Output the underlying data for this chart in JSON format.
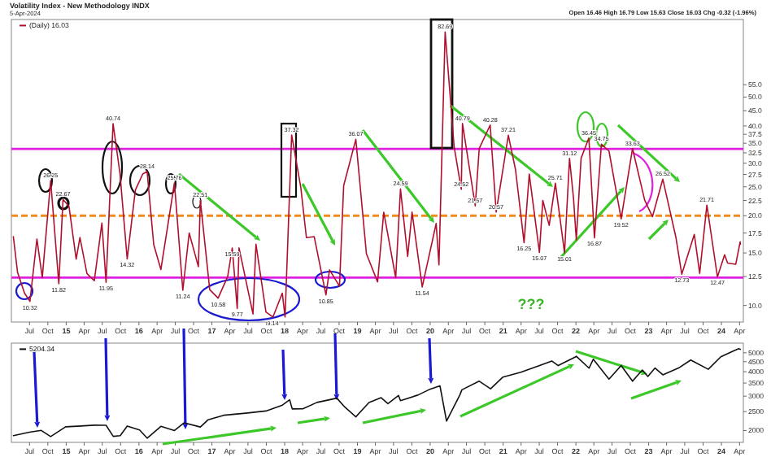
{
  "chart_data": [
    {
      "type": "line",
      "title": "Volatility Index - New Methodology INDX",
      "subtitle": "5-Apr-2024",
      "log": true,
      "legend": "top left",
      "xlim": [
        "2014-04-01",
        "2024-04-20"
      ],
      "xticks": [
        {
          "value": "2014-07-01",
          "label": "Jul"
        },
        {
          "value": "2014-10-01",
          "label": "Oct"
        },
        {
          "value": "2015-01-01",
          "label": "15"
        },
        {
          "value": "2015-04-01",
          "label": "Apr"
        },
        {
          "value": "2015-07-01",
          "label": "Jul"
        },
        {
          "value": "2015-10-01",
          "label": "Oct"
        },
        {
          "value": "2016-01-01",
          "label": "16"
        },
        {
          "value": "2016-04-01",
          "label": "Apr"
        },
        {
          "value": "2016-07-01",
          "label": "Jul"
        },
        {
          "value": "2016-10-01",
          "label": "Oct"
        },
        {
          "value": "2017-01-01",
          "label": "17"
        },
        {
          "value": "2017-04-01",
          "label": "Apr"
        },
        {
          "value": "2017-07-01",
          "label": "Jul"
        },
        {
          "value": "2017-10-01",
          "label": "Oct"
        },
        {
          "value": "2018-01-01",
          "label": "18"
        },
        {
          "value": "2018-04-01",
          "label": "Apr"
        },
        {
          "value": "2018-07-01",
          "label": "Jul"
        },
        {
          "value": "2018-10-01",
          "label": "Oct"
        },
        {
          "value": "2019-01-01",
          "label": "19"
        },
        {
          "value": "2019-04-01",
          "label": "Apr"
        },
        {
          "value": "2019-07-01",
          "label": "Jul"
        },
        {
          "value": "2019-10-01",
          "label": "Oct"
        },
        {
          "value": "2020-01-01",
          "label": "20"
        },
        {
          "value": "2020-04-01",
          "label": "Apr"
        },
        {
          "value": "2020-07-01",
          "label": "Jul"
        },
        {
          "value": "2020-10-01",
          "label": "Oct"
        },
        {
          "value": "2021-01-01",
          "label": "21"
        },
        {
          "value": "2021-04-01",
          "label": "Apr"
        },
        {
          "value": "2021-07-01",
          "label": "Jul"
        },
        {
          "value": "2021-10-01",
          "label": "Oct"
        },
        {
          "value": "2022-01-01",
          "label": "22"
        },
        {
          "value": "2022-04-01",
          "label": "Apr"
        },
        {
          "value": "2022-07-01",
          "label": "Jul"
        },
        {
          "value": "2022-10-01",
          "label": "Oct"
        },
        {
          "value": "2023-01-01",
          "label": "23"
        },
        {
          "value": "2023-04-01",
          "label": "Apr"
        },
        {
          "value": "2023-07-01",
          "label": "Jul"
        },
        {
          "value": "2023-10-01",
          "label": "Oct"
        },
        {
          "value": "2024-01-01",
          "label": "24"
        },
        {
          "value": "2024-04-01",
          "label": "Apr"
        }
      ],
      "ylim": [
        8.8,
        91
      ],
      "yticks": [
        {
          "value": 10,
          "label": "10.0"
        },
        12.5,
        {
          "value": 15,
          "label": "15.0"
        },
        17.5,
        {
          "value": 20,
          "label": "20.0"
        },
        22.5,
        {
          "value": 25,
          "label": "25.0"
        },
        27.5,
        {
          "value": 30,
          "label": "30.0"
        },
        32.5,
        {
          "value": 35,
          "label": "35.0"
        },
        37.5,
        {
          "value": 40,
          "label": "40.0"
        },
        {
          "value": 45,
          "label": "45.0"
        },
        {
          "value": 50,
          "label": "50.0"
        },
        {
          "value": 55,
          "label": "55.0"
        }
      ],
      "x": [
        "2014-04-11",
        "2014-05-02",
        "2014-06-06",
        "2014-07-03",
        "2014-08-07",
        "2014-09-03",
        "2014-10-15",
        "2014-11-25",
        "2014-12-16",
        "2015-01-15",
        "2015-02-20",
        "2015-03-11",
        "2015-04-15",
        "2015-05-22",
        "2015-06-29",
        "2015-07-20",
        "2015-08-24",
        "2015-09-28",
        "2015-11-03",
        "2015-12-14",
        "2016-01-20",
        "2016-02-11",
        "2016-03-15",
        "2016-04-20",
        "2016-06-27",
        "2016-08-08",
        "2016-09-09",
        "2016-10-25",
        "2016-11-04",
        "2016-12-21",
        "2017-02-01",
        "2017-03-21",
        "2017-04-13",
        "2017-05-08",
        "2017-05-17",
        "2017-07-26",
        "2017-08-10",
        "2017-09-29",
        "2017-11-03",
        "2017-12-20",
        "2018-01-03",
        "2018-02-05",
        "2018-03-23",
        "2018-04-20",
        "2018-05-29",
        "2018-07-27",
        "2018-08-14",
        "2018-10-03",
        "2018-10-24",
        "2018-12-24",
        "2019-02-15",
        "2019-04-12",
        "2019-05-13",
        "2019-07-12",
        "2019-08-05",
        "2019-09-10",
        "2019-10-02",
        "2019-11-22",
        "2020-01-31",
        "2020-02-14",
        "2020-03-16",
        "2020-04-30",
        "2020-06-05",
        "2020-06-11",
        "2020-08-14",
        "2020-09-03",
        "2020-10-28",
        "2020-11-27",
        "2021-01-27",
        "2021-03-04",
        "2021-04-16",
        "2021-05-12",
        "2021-07-02",
        "2021-07-19",
        "2021-08-20",
        "2021-09-20",
        "2021-11-05",
        "2021-11-30",
        "2021-12-20",
        "2022-01-03",
        "2022-01-27",
        "2022-03-07",
        "2022-04-04",
        "2022-05-09",
        "2022-06-16",
        "2022-08-16",
        "2022-10-12",
        "2022-12-12",
        "2023-01-20",
        "2023-03-13",
        "2023-05-18",
        "2023-06-16",
        "2023-08-18",
        "2023-09-14",
        "2023-10-20",
        "2023-12-12",
        "2024-01-17",
        "2024-02-01",
        "2024-03-13",
        "2024-04-04",
        "2024-04-05"
      ],
      "series": [
        {
          "name": "(Daily) 16.03",
          "color": "#b0102e",
          "values": [
            17.0,
            12.9,
            11.0,
            10.32,
            16.7,
            12.4,
            26.25,
            11.82,
            22.67,
            21.5,
            14.3,
            16.9,
            12.8,
            12.1,
            18.9,
            11.95,
            40.74,
            27.6,
            14.32,
            24.4,
            27.6,
            28.14,
            16.0,
            13.2,
            25.76,
            11.24,
            17.5,
            13.5,
            22.51,
            11.3,
            10.58,
            12.5,
            15.59,
            9.77,
            15.6,
            9.36,
            16.04,
            9.51,
            9.14,
            11.0,
            9.15,
            37.32,
            24.87,
            16.88,
            17.02,
            10.85,
            13.16,
            11.61,
            25.23,
            36.07,
            14.91,
            12.0,
            20.55,
            12.39,
            24.59,
            14.6,
            20.56,
            11.54,
            18.84,
            13.68,
            82.69,
            34.15,
            24.52,
            40.79,
            21.57,
            33.6,
            40.28,
            20.57,
            37.21,
            28.57,
            16.25,
            27.59,
            15.07,
            22.5,
            18.56,
            25.71,
            15.01,
            31.12,
            22.87,
            16.6,
            31.16,
            36.45,
            16.87,
            34.75,
            32.95,
            19.52,
            33.63,
            22.55,
            19.85,
            26.52,
            16.88,
            12.73,
            17.3,
            12.82,
            21.71,
            12.47,
            14.79,
            13.88,
            13.75,
            16.35,
            16.03
          ]
        }
      ],
      "ref_lines": [
        {
          "axis": "y",
          "value": 33.5,
          "color": "#e020e0",
          "line_style": "solid"
        },
        {
          "axis": "y",
          "value": 20,
          "color": "#f08c1e",
          "line_style": "dashed"
        },
        {
          "axis": "y",
          "value": 12.4,
          "color": "#e020e0",
          "line_style": "solid"
        }
      ],
      "annotations": [
        "Open 16.46 High 16.79 Low 15.63 Close 16.03 Chg -0.32 (-1.96%)",
        "???",
        {
          "text": "10.32",
          "x": "2014-07-03",
          "y": 10.32
        },
        {
          "text": "26.25",
          "x": "2014-10-15",
          "y": 26.25
        },
        {
          "text": "11.82",
          "x": "2014-11-25",
          "y": 11.82
        },
        {
          "text": "22.67",
          "x": "2014-12-16",
          "y": 22.67
        },
        {
          "text": "11.95",
          "x": "2015-07-20",
          "y": 11.95
        },
        {
          "text": "40.74",
          "x": "2015-08-24",
          "y": 40.74
        },
        {
          "text": "14.32",
          "x": "2015-11-03",
          "y": 14.32
        },
        {
          "text": "28.14",
          "x": "2016-02-11",
          "y": 28.14
        },
        {
          "text": "25.76",
          "x": "2016-06-27",
          "y": 25.76
        },
        {
          "text": "11.24",
          "x": "2016-08-08",
          "y": 11.24
        },
        {
          "text": "22.51",
          "x": "2016-11-04",
          "y": 22.51
        },
        {
          "text": "10.58",
          "x": "2017-02-01",
          "y": 10.58
        },
        {
          "text": "15.59",
          "x": "2017-04-13",
          "y": 15.59
        },
        {
          "text": "9.77",
          "x": "2017-05-08",
          "y": 9.77
        },
        {
          "text": "9.14",
          "x": "2017-11-03",
          "y": 9.14
        },
        {
          "text": "37.32",
          "x": "2018-02-05",
          "y": 37.32
        },
        {
          "text": "10.85",
          "x": "2018-07-27",
          "y": 10.85
        },
        {
          "text": "36.07",
          "x": "2018-12-24",
          "y": 36.07
        },
        {
          "text": "24.59",
          "x": "2019-08-05",
          "y": 24.59
        },
        {
          "text": "11.54",
          "x": "2019-11-22",
          "y": 11.54
        },
        {
          "text": "82.69",
          "x": "2020-03-16",
          "y": 82.69
        },
        {
          "text": "24.52",
          "x": "2020-06-05",
          "y": 24.52
        },
        {
          "text": "40.79",
          "x": "2020-06-11",
          "y": 40.79
        },
        {
          "text": "21.57",
          "x": "2020-08-14",
          "y": 21.57
        },
        {
          "text": "40.28",
          "x": "2020-10-28",
          "y": 40.28
        },
        {
          "text": "20.57",
          "x": "2020-11-27",
          "y": 20.57
        },
        {
          "text": "37.21",
          "x": "2021-01-27",
          "y": 37.21
        },
        {
          "text": "16.25",
          "x": "2021-04-16",
          "y": 16.25
        },
        {
          "text": "15.07",
          "x": "2021-07-02",
          "y": 15.07
        },
        {
          "text": "25.71",
          "x": "2021-09-20",
          "y": 25.71
        },
        {
          "text": "15.01",
          "x": "2021-11-05",
          "y": 15.01
        },
        {
          "text": "31.12",
          "x": "2021-11-30",
          "y": 31.12
        },
        {
          "text": "36.45",
          "x": "2022-03-07",
          "y": 36.45
        },
        {
          "text": "16.87",
          "x": "2022-04-04",
          "y": 16.87
        },
        {
          "text": "34.75",
          "x": "2022-05-09",
          "y": 34.75
        },
        {
          "text": "19.52",
          "x": "2022-08-16",
          "y": 19.52
        },
        {
          "text": "33.63",
          "x": "2022-10-12",
          "y": 33.63
        },
        {
          "text": "26.52",
          "x": "2023-03-13",
          "y": 26.52
        },
        {
          "text": "12.73",
          "x": "2023-06-16",
          "y": 12.73
        },
        {
          "text": "21.71",
          "x": "2023-10-20",
          "y": 21.71
        },
        {
          "text": "12.47",
          "x": "2023-12-12",
          "y": 12.47
        }
      ]
    },
    {
      "type": "line",
      "log": true,
      "legend": "top left",
      "xlim": [
        "2014-04-01",
        "2024-04-20"
      ],
      "xticks": [
        {
          "value": "2014-07-01",
          "label": "Jul"
        },
        {
          "value": "2014-10-01",
          "label": "Oct"
        },
        {
          "value": "2015-01-01",
          "label": "15"
        },
        {
          "value": "2015-04-01",
          "label": "Apr"
        },
        {
          "value": "2015-07-01",
          "label": "Jul"
        },
        {
          "value": "2015-10-01",
          "label": "Oct"
        },
        {
          "value": "2016-01-01",
          "label": "16"
        },
        {
          "value": "2016-04-01",
          "label": "Apr"
        },
        {
          "value": "2016-07-01",
          "label": "Jul"
        },
        {
          "value": "2016-10-01",
          "label": "Oct"
        },
        {
          "value": "2017-01-01",
          "label": "17"
        },
        {
          "value": "2017-04-01",
          "label": "Apr"
        },
        {
          "value": "2017-07-01",
          "label": "Jul"
        },
        {
          "value": "2017-10-01",
          "label": "Oct"
        },
        {
          "value": "2018-01-01",
          "label": "18"
        },
        {
          "value": "2018-04-01",
          "label": "Apr"
        },
        {
          "value": "2018-07-01",
          "label": "Jul"
        },
        {
          "value": "2018-10-01",
          "label": "Oct"
        },
        {
          "value": "2019-01-01",
          "label": "19"
        },
        {
          "value": "2019-04-01",
          "label": "Apr"
        },
        {
          "value": "2019-07-01",
          "label": "Jul"
        },
        {
          "value": "2019-10-01",
          "label": "Oct"
        },
        {
          "value": "2020-01-01",
          "label": "20"
        },
        {
          "value": "2020-04-01",
          "label": "Apr"
        },
        {
          "value": "2020-07-01",
          "label": "Jul"
        },
        {
          "value": "2020-10-01",
          "label": "Oct"
        },
        {
          "value": "2021-01-01",
          "label": "21"
        },
        {
          "value": "2021-04-01",
          "label": "Apr"
        },
        {
          "value": "2021-07-01",
          "label": "Jul"
        },
        {
          "value": "2021-10-01",
          "label": "Oct"
        },
        {
          "value": "2022-01-01",
          "label": "22"
        },
        {
          "value": "2022-04-01",
          "label": "Apr"
        },
        {
          "value": "2022-07-01",
          "label": "Jul"
        },
        {
          "value": "2022-10-01",
          "label": "Oct"
        },
        {
          "value": "2023-01-01",
          "label": "23"
        },
        {
          "value": "2023-04-01",
          "label": "Apr"
        },
        {
          "value": "2023-07-01",
          "label": "Jul"
        },
        {
          "value": "2023-10-01",
          "label": "Oct"
        },
        {
          "value": "2024-01-01",
          "label": "24"
        },
        {
          "value": "2024-04-01",
          "label": "Apr"
        }
      ],
      "ylim": [
        1740,
        5600
      ],
      "yticks": [
        2000,
        2500,
        3000,
        3500,
        4000,
        4500,
        5000
      ],
      "x": [
        "2014-04-11",
        "2014-06-30",
        "2014-08-29",
        "2014-10-15",
        "2014-12-29",
        "2015-02-27",
        "2015-05-21",
        "2015-07-20",
        "2015-08-25",
        "2015-09-29",
        "2015-11-03",
        "2016-01-04",
        "2016-02-11",
        "2016-04-20",
        "2016-06-27",
        "2016-08-15",
        "2016-11-04",
        "2016-12-13",
        "2017-03-01",
        "2017-06-19",
        "2017-09-29",
        "2017-12-18",
        "2018-01-26",
        "2018-02-08",
        "2018-04-02",
        "2018-06-12",
        "2018-09-20",
        "2018-10-29",
        "2018-12-24",
        "2019-02-28",
        "2019-04-30",
        "2019-06-03",
        "2019-07-26",
        "2019-08-05",
        "2019-10-31",
        "2019-12-27",
        "2020-02-19",
        "2020-03-23",
        "2020-05-29",
        "2020-06-08",
        "2020-09-02",
        "2020-10-30",
        "2020-12-31",
        "2021-03-31",
        "2021-06-30",
        "2021-09-02",
        "2021-10-04",
        "2021-12-31",
        "2022-01-03",
        "2022-03-08",
        "2022-03-29",
        "2022-06-16",
        "2022-08-16",
        "2022-10-12",
        "2022-11-30",
        "2022-12-28",
        "2023-02-02",
        "2023-03-13",
        "2023-05-31",
        "2023-07-31",
        "2023-10-27",
        "2023-12-29",
        "2024-02-29",
        "2024-03-28",
        "2024-04-05"
      ],
      "series": [
        {
          "name": "5204.34",
          "color": "#111111",
          "values": [
            1884,
            1960,
            2003,
            1862,
            2090,
            2104,
            2131,
            2128,
            1868,
            1884,
            2109,
            2013,
            1829,
            2102,
            2000,
            2190,
            2085,
            2271,
            2395,
            2453,
            2519,
            2690,
            2872,
            2581,
            2582,
            2786,
            2930,
            2641,
            2351,
            2784,
            2945,
            2744,
            3025,
            2844,
            3037,
            3240,
            3386,
            2237,
            3044,
            3232,
            3580,
            3270,
            3756,
            3973,
            4297,
            4537,
            4300,
            4766,
            4796,
            4170,
            4631,
            3666,
            4305,
            3577,
            4080,
            3783,
            4179,
            3855,
            4179,
            4589,
            4117,
            4770,
            5096,
            5254,
            5204
          ]
        }
      ]
    }
  ]
}
